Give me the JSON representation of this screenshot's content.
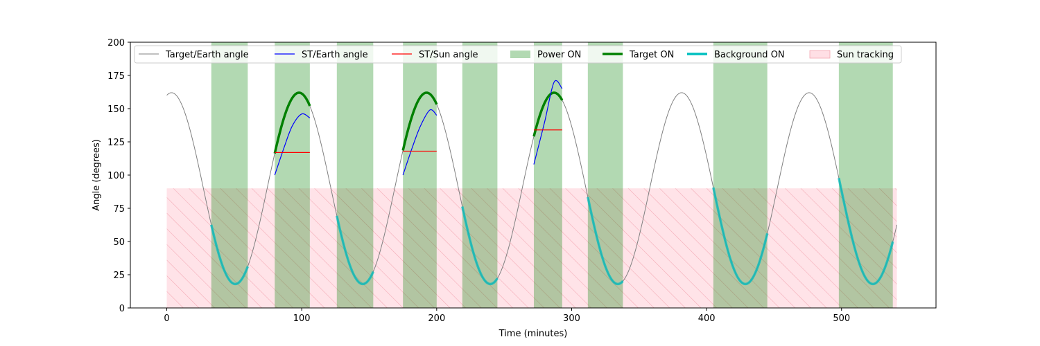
{
  "chart_data": {
    "type": "line",
    "title": "",
    "xlabel": "Time (minutes)",
    "ylabel": "Angle (degrees)",
    "xlim": [
      -27,
      570
    ],
    "ylim": [
      0,
      200
    ],
    "x_ticks": [
      0,
      100,
      200,
      300,
      400,
      500
    ],
    "y_ticks": [
      0,
      25,
      50,
      75,
      100,
      125,
      150,
      175,
      200
    ],
    "grid": false,
    "legend_position": "top",
    "orbit": {
      "period_minutes": 94.5,
      "center_degrees": 90,
      "amplitude_degrees": 72,
      "first_peak_minutes": 3.5,
      "t_start": 0,
      "t_end": 541
    },
    "power_on_windows": [
      [
        33,
        60
      ],
      [
        80,
        106
      ],
      [
        126,
        153
      ],
      [
        175,
        200
      ],
      [
        219,
        245
      ],
      [
        272,
        293
      ],
      [
        312,
        338
      ],
      [
        405,
        445
      ],
      [
        498,
        538
      ]
    ],
    "sun_tracking_band": {
      "x": [
        0,
        541
      ],
      "y": [
        0,
        90
      ]
    },
    "target_on_windows": [
      [
        80,
        106
      ],
      [
        175,
        200
      ],
      [
        272,
        293
      ]
    ],
    "background_on_windows": [
      [
        33,
        60
      ],
      [
        126,
        153
      ],
      [
        219,
        245
      ],
      [
        312,
        338
      ],
      [
        405,
        445
      ],
      [
        498,
        538
      ]
    ],
    "st_earth_segments": [
      {
        "points": [
          [
            80,
            100
          ],
          [
            87,
            121
          ],
          [
            93,
            137
          ],
          [
            100,
            146
          ],
          [
            106,
            143
          ]
        ]
      },
      {
        "points": [
          [
            175,
            100
          ],
          [
            182,
            121
          ],
          [
            188,
            137
          ],
          [
            195,
            149
          ],
          [
            200,
            145
          ]
        ]
      },
      {
        "points": [
          [
            272,
            108
          ],
          [
            280,
            140
          ],
          [
            287,
            170
          ],
          [
            293,
            165
          ]
        ]
      }
    ],
    "st_sun_segments": [
      {
        "x": [
          80,
          106
        ],
        "y": 117
      },
      {
        "x": [
          175,
          200
        ],
        "y": 118
      },
      {
        "x": [
          272,
          293
        ],
        "y": 134
      }
    ],
    "series": [
      {
        "name": "Target/Earth angle",
        "color": "#808080"
      },
      {
        "name": "ST/Earth angle",
        "color": "#0000ff"
      },
      {
        "name": "ST/Sun angle",
        "color": "#ff0000"
      },
      {
        "name": "Power ON",
        "color": "#008000"
      },
      {
        "name": "Target ON",
        "color": "#008000"
      },
      {
        "name": "Background ON",
        "color": "#00bfbf"
      },
      {
        "name": "Sun tracking",
        "color": "#ffc0cb"
      }
    ]
  }
}
